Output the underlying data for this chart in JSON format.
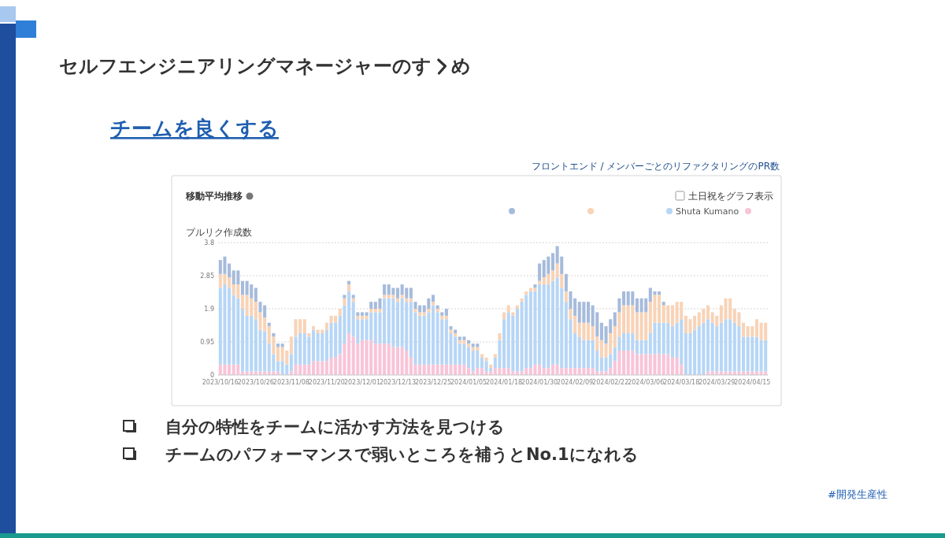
{
  "chart_data": {
    "type": "bar",
    "stacked": true,
    "title": "セルフエンジニアリングマネージャーのすゝめ",
    "subtitle": "チームを良くする",
    "ylabel": "プルリク作成数",
    "annotations": [
      "フロントエンド / メンバーごとのリファクタリングのPR数",
      "移動平均推移",
      "土日祝をグラフ表示",
      "自分の特性をチームに活かす方法を見つける",
      "チームのパフォーマンスで弱いところを補うとNo.1になれる",
      "#開発生産性"
    ],
    "categories": [
      "2023/10/16",
      null,
      null,
      null,
      null,
      null,
      null,
      null,
      "2023/10/26",
      null,
      null,
      null,
      null,
      null,
      null,
      null,
      "2023/11/08",
      null,
      null,
      null,
      null,
      null,
      null,
      null,
      "2023/11/20",
      null,
      null,
      null,
      null,
      null,
      null,
      null,
      "2023/12/01",
      null,
      null,
      null,
      null,
      null,
      null,
      null,
      "2023/12/13",
      null,
      null,
      null,
      null,
      null,
      null,
      null,
      "2023/12/25",
      null,
      null,
      null,
      null,
      null,
      null,
      null,
      "2024/01/05",
      null,
      null,
      null,
      null,
      null,
      null,
      null,
      "2024/01/18",
      null,
      null,
      null,
      null,
      null,
      null,
      null,
      "2024/01/30",
      null,
      null,
      null,
      null,
      null,
      null,
      null,
      "2024/02/09",
      null,
      null,
      null,
      null,
      null,
      null,
      null,
      "2024/02/22",
      null,
      null,
      null,
      null,
      null,
      null,
      null,
      "2024/03/06",
      null,
      null,
      null,
      null,
      null,
      null,
      null,
      "2024/03/18",
      null,
      null,
      null,
      null,
      null,
      null,
      null,
      "2024/03/29",
      null,
      null,
      null,
      null,
      null,
      null,
      null,
      "2024/04/15",
      null,
      null,
      null
    ],
    "ylim": [
      0,
      3.8
    ],
    "yticks": [
      0,
      0.95,
      1.9,
      2.85,
      3.8
    ],
    "grid": "y",
    "legend": "top right",
    "series": [
      {
        "color": "#f8c4d8",
        "values": [
          0.3,
          0.3,
          0.3,
          0.3,
          0.3,
          0.1,
          0.1,
          0.1,
          0.1,
          0.1,
          0.1,
          0.1,
          0.1,
          0.1,
          0,
          0,
          0.1,
          0.3,
          0.3,
          0.3,
          0.3,
          0.4,
          0.4,
          0.4,
          0.4,
          0.5,
          0.5,
          0.6,
          0.9,
          1.2,
          1.1,
          0.9,
          1.0,
          1.0,
          1.0,
          0.9,
          0.9,
          0.9,
          0.9,
          0.8,
          0.8,
          0.8,
          0.7,
          0.5,
          0.3,
          0.3,
          0.3,
          0.3,
          0.3,
          0.3,
          0.3,
          0.3,
          0.3,
          0.3,
          0.3,
          0.3,
          0.2,
          0.1,
          0.2,
          0.2,
          0.1,
          0.1,
          0.2,
          0.2,
          0.2,
          0.2,
          0.1,
          0.1,
          0.1,
          0.2,
          0.2,
          0.3,
          0.3,
          0.2,
          0.2,
          0.3,
          0.3,
          0.2,
          0.2,
          0.2,
          0.2,
          0.2,
          0.2,
          0.2,
          0.2,
          0.1,
          0.1,
          0.1,
          0.2,
          0.4,
          0.7,
          0.7,
          0.7,
          0.7,
          0.6,
          0.6,
          0.6,
          0.6,
          0.6,
          0.6,
          0.6,
          0.6,
          0.5,
          0.5,
          0.3,
          0,
          0,
          0,
          0,
          0,
          0.1,
          0.1,
          0.1,
          0.1,
          0.1,
          0.1,
          0.1,
          0.1,
          0.1,
          0.1,
          0.1,
          0.1,
          0.1,
          0.1
        ]
      },
      {
        "name": "Shuta Kumano",
        "color": "#b7d6f6",
        "values": [
          2.2,
          2.3,
          2.2,
          2.0,
          1.9,
          1.8,
          1.6,
          1.6,
          1.5,
          1.2,
          1.15,
          0.8,
          0.5,
          0.3,
          0.4,
          0.3,
          0.5,
          0.8,
          0.9,
          0.9,
          0.8,
          0.9,
          0.8,
          0.8,
          0.9,
          1.0,
          1.0,
          1.1,
          1.1,
          1.2,
          1.0,
          0.7,
          0.6,
          0.6,
          0.8,
          0.9,
          0.9,
          1.3,
          1.3,
          1.4,
          1.3,
          1.4,
          1.4,
          1.6,
          1.5,
          1.4,
          1.4,
          1.5,
          1.7,
          1.5,
          1.3,
          1.3,
          0.9,
          0.8,
          0.6,
          0.6,
          0.6,
          0.6,
          0.5,
          0.3,
          0.3,
          0.1,
          0.3,
          0.8,
          1.4,
          1.6,
          1.6,
          1.8,
          2.0,
          2.1,
          2.2,
          2.1,
          2.3,
          2.4,
          2.4,
          2.4,
          2.5,
          2.3,
          1.9,
          1.4,
          1.0,
          0.9,
          0.8,
          0.8,
          0.8,
          0.6,
          0.4,
          0.4,
          0.4,
          0.4,
          0.4,
          0.5,
          0.5,
          0.5,
          0.4,
          0.4,
          0.4,
          0.6,
          0.9,
          0.9,
          0.9,
          0.9,
          0.9,
          1.0,
          1.3,
          1.2,
          1.2,
          1.3,
          1.4,
          1.5,
          1.5,
          1.4,
          1.3,
          1.4,
          1.5,
          1.5,
          1.4,
          1.3,
          1.0,
          1.0,
          1.0,
          1.0,
          0.9,
          0.9
        ]
      },
      {
        "color": "#f8d3b7",
        "values": [
          0.4,
          0.3,
          0.3,
          0.3,
          0.4,
          0.4,
          0.6,
          0.5,
          0.5,
          0.5,
          0.4,
          0.5,
          0.5,
          0.4,
          0.4,
          0.4,
          0.5,
          0.5,
          0.4,
          0.4,
          0.1,
          0.1,
          0.1,
          0.1,
          0.2,
          0.2,
          0.2,
          0.2,
          0.2,
          0.2,
          0.1,
          0.1,
          0.1,
          0.1,
          0.1,
          0.1,
          0.1,
          0.1,
          0.1,
          0.1,
          0.1,
          0.1,
          0.1,
          0.1,
          0.1,
          0.1,
          0.1,
          0.1,
          0.1,
          0.1,
          0.1,
          0.1,
          0.1,
          0.1,
          0.1,
          0.1,
          0.1,
          0.1,
          0.1,
          0.1,
          0.1,
          0.1,
          0.1,
          0.2,
          0.2,
          0.2,
          0.1,
          0.1,
          0.1,
          0.1,
          0.1,
          0.1,
          0.1,
          0.2,
          0.3,
          0.3,
          0.4,
          0.4,
          0.3,
          0.3,
          0.5,
          0.4,
          0.5,
          0.5,
          0.4,
          0.4,
          0.5,
          0.4,
          0.6,
          0.6,
          0.7,
          0.8,
          0.8,
          0.8,
          0.8,
          0.8,
          0.8,
          0.9,
          0.8,
          0.8,
          0.5,
          0.5,
          0.6,
          0.6,
          0.5,
          0.5,
          0.4,
          0.4,
          0.4,
          0.4,
          0.4,
          0.3,
          0.3,
          0.5,
          0.6,
          0.6,
          0.4,
          0.4,
          0.4,
          0.3,
          0.3,
          0.5,
          0.5,
          0.5
        ]
      },
      {
        "color": "#a6bbdb",
        "values": [
          0.4,
          0.5,
          0.4,
          0.4,
          0.4,
          0.4,
          0.4,
          0.4,
          0.4,
          0.3,
          0.35,
          0.1,
          0.1,
          0.1,
          0.1,
          0,
          0,
          0,
          0,
          0,
          0,
          0,
          0,
          0,
          0,
          0,
          0,
          0,
          0.1,
          0.1,
          0.1,
          0.1,
          0.1,
          0.1,
          0.2,
          0.2,
          0.3,
          0.3,
          0.3,
          0.2,
          0.3,
          0.3,
          0.3,
          0.3,
          0.2,
          0.2,
          0.2,
          0.3,
          0.2,
          0.1,
          0.1,
          0.2,
          0.1,
          0.1,
          0.1,
          0.1,
          0.1,
          0.1,
          0.1,
          0,
          0,
          0,
          0,
          0,
          0,
          0,
          0,
          0,
          0,
          0,
          0,
          0.1,
          0.5,
          0.5,
          0.5,
          0.5,
          0.5,
          0.5,
          0.5,
          0.5,
          0.5,
          0.6,
          0.6,
          0.6,
          0.6,
          0.7,
          0.5,
          0.5,
          0.4,
          0.4,
          0.4,
          0.4,
          0.4,
          0.4,
          0.4,
          0.4,
          0.4,
          0.4,
          0.1,
          0.1,
          0.1,
          0,
          0,
          0,
          0,
          0,
          0,
          0,
          0,
          0,
          0,
          0,
          0,
          0,
          0,
          0,
          0,
          0,
          0,
          0,
          0,
          0,
          0,
          0
        ]
      }
    ]
  }
}
